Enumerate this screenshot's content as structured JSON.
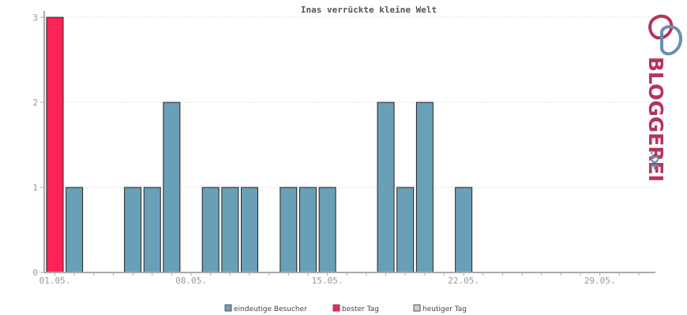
{
  "chart_data": {
    "type": "bar",
    "title": "Inas verrückte kleine Welt",
    "xlabel": "",
    "ylabel": "",
    "ylim": [
      0,
      3
    ],
    "yticks": [
      0,
      1,
      2,
      3
    ],
    "grid": true,
    "legend_position": "bottom-center",
    "days": [
      1,
      2,
      3,
      4,
      5,
      6,
      7,
      8,
      9,
      10,
      11,
      12,
      13,
      14,
      15,
      16,
      17,
      18,
      19,
      20,
      21,
      22,
      23,
      24,
      25,
      26,
      27,
      28,
      29,
      30,
      31
    ],
    "x_tick_labels": [
      "01.05.",
      "08.05.",
      "15.05.",
      "22.05.",
      "29.05."
    ],
    "x_tick_days": [
      1,
      8,
      15,
      22,
      29
    ],
    "series": [
      {
        "name": "eindeutige Besucher",
        "color": "#6a9fb8",
        "values": [
          0,
          1,
          0,
          0,
          1,
          1,
          2,
          0,
          1,
          1,
          1,
          0,
          1,
          1,
          1,
          0,
          0,
          2,
          1,
          2,
          0,
          1,
          0,
          0,
          0,
          0,
          0,
          0,
          0,
          0,
          0
        ]
      },
      {
        "name": "bester Tag",
        "color": "#ff2255",
        "values": [
          3,
          0,
          0,
          0,
          0,
          0,
          0,
          0,
          0,
          0,
          0,
          0,
          0,
          0,
          0,
          0,
          0,
          0,
          0,
          0,
          0,
          0,
          0,
          0,
          0,
          0,
          0,
          0,
          0,
          0,
          0
        ]
      },
      {
        "name": "heutiger Tag",
        "color": "#cccccc",
        "values": [
          0,
          0,
          0,
          0,
          0,
          0,
          0,
          0,
          0,
          0,
          0,
          0,
          0,
          0,
          0,
          0,
          0,
          0,
          0,
          0,
          0,
          0,
          0,
          0,
          0,
          0,
          0,
          0,
          0,
          0,
          0
        ]
      }
    ]
  },
  "logo": {
    "main": "BLOGGEREI",
    "suffix": ".DE"
  },
  "colors": {
    "axis": "#aaaaaa",
    "grid": "#cccccc",
    "bar_stroke": "#222222",
    "logo_red": "#b5345a",
    "logo_blue": "#6a8fb0"
  }
}
